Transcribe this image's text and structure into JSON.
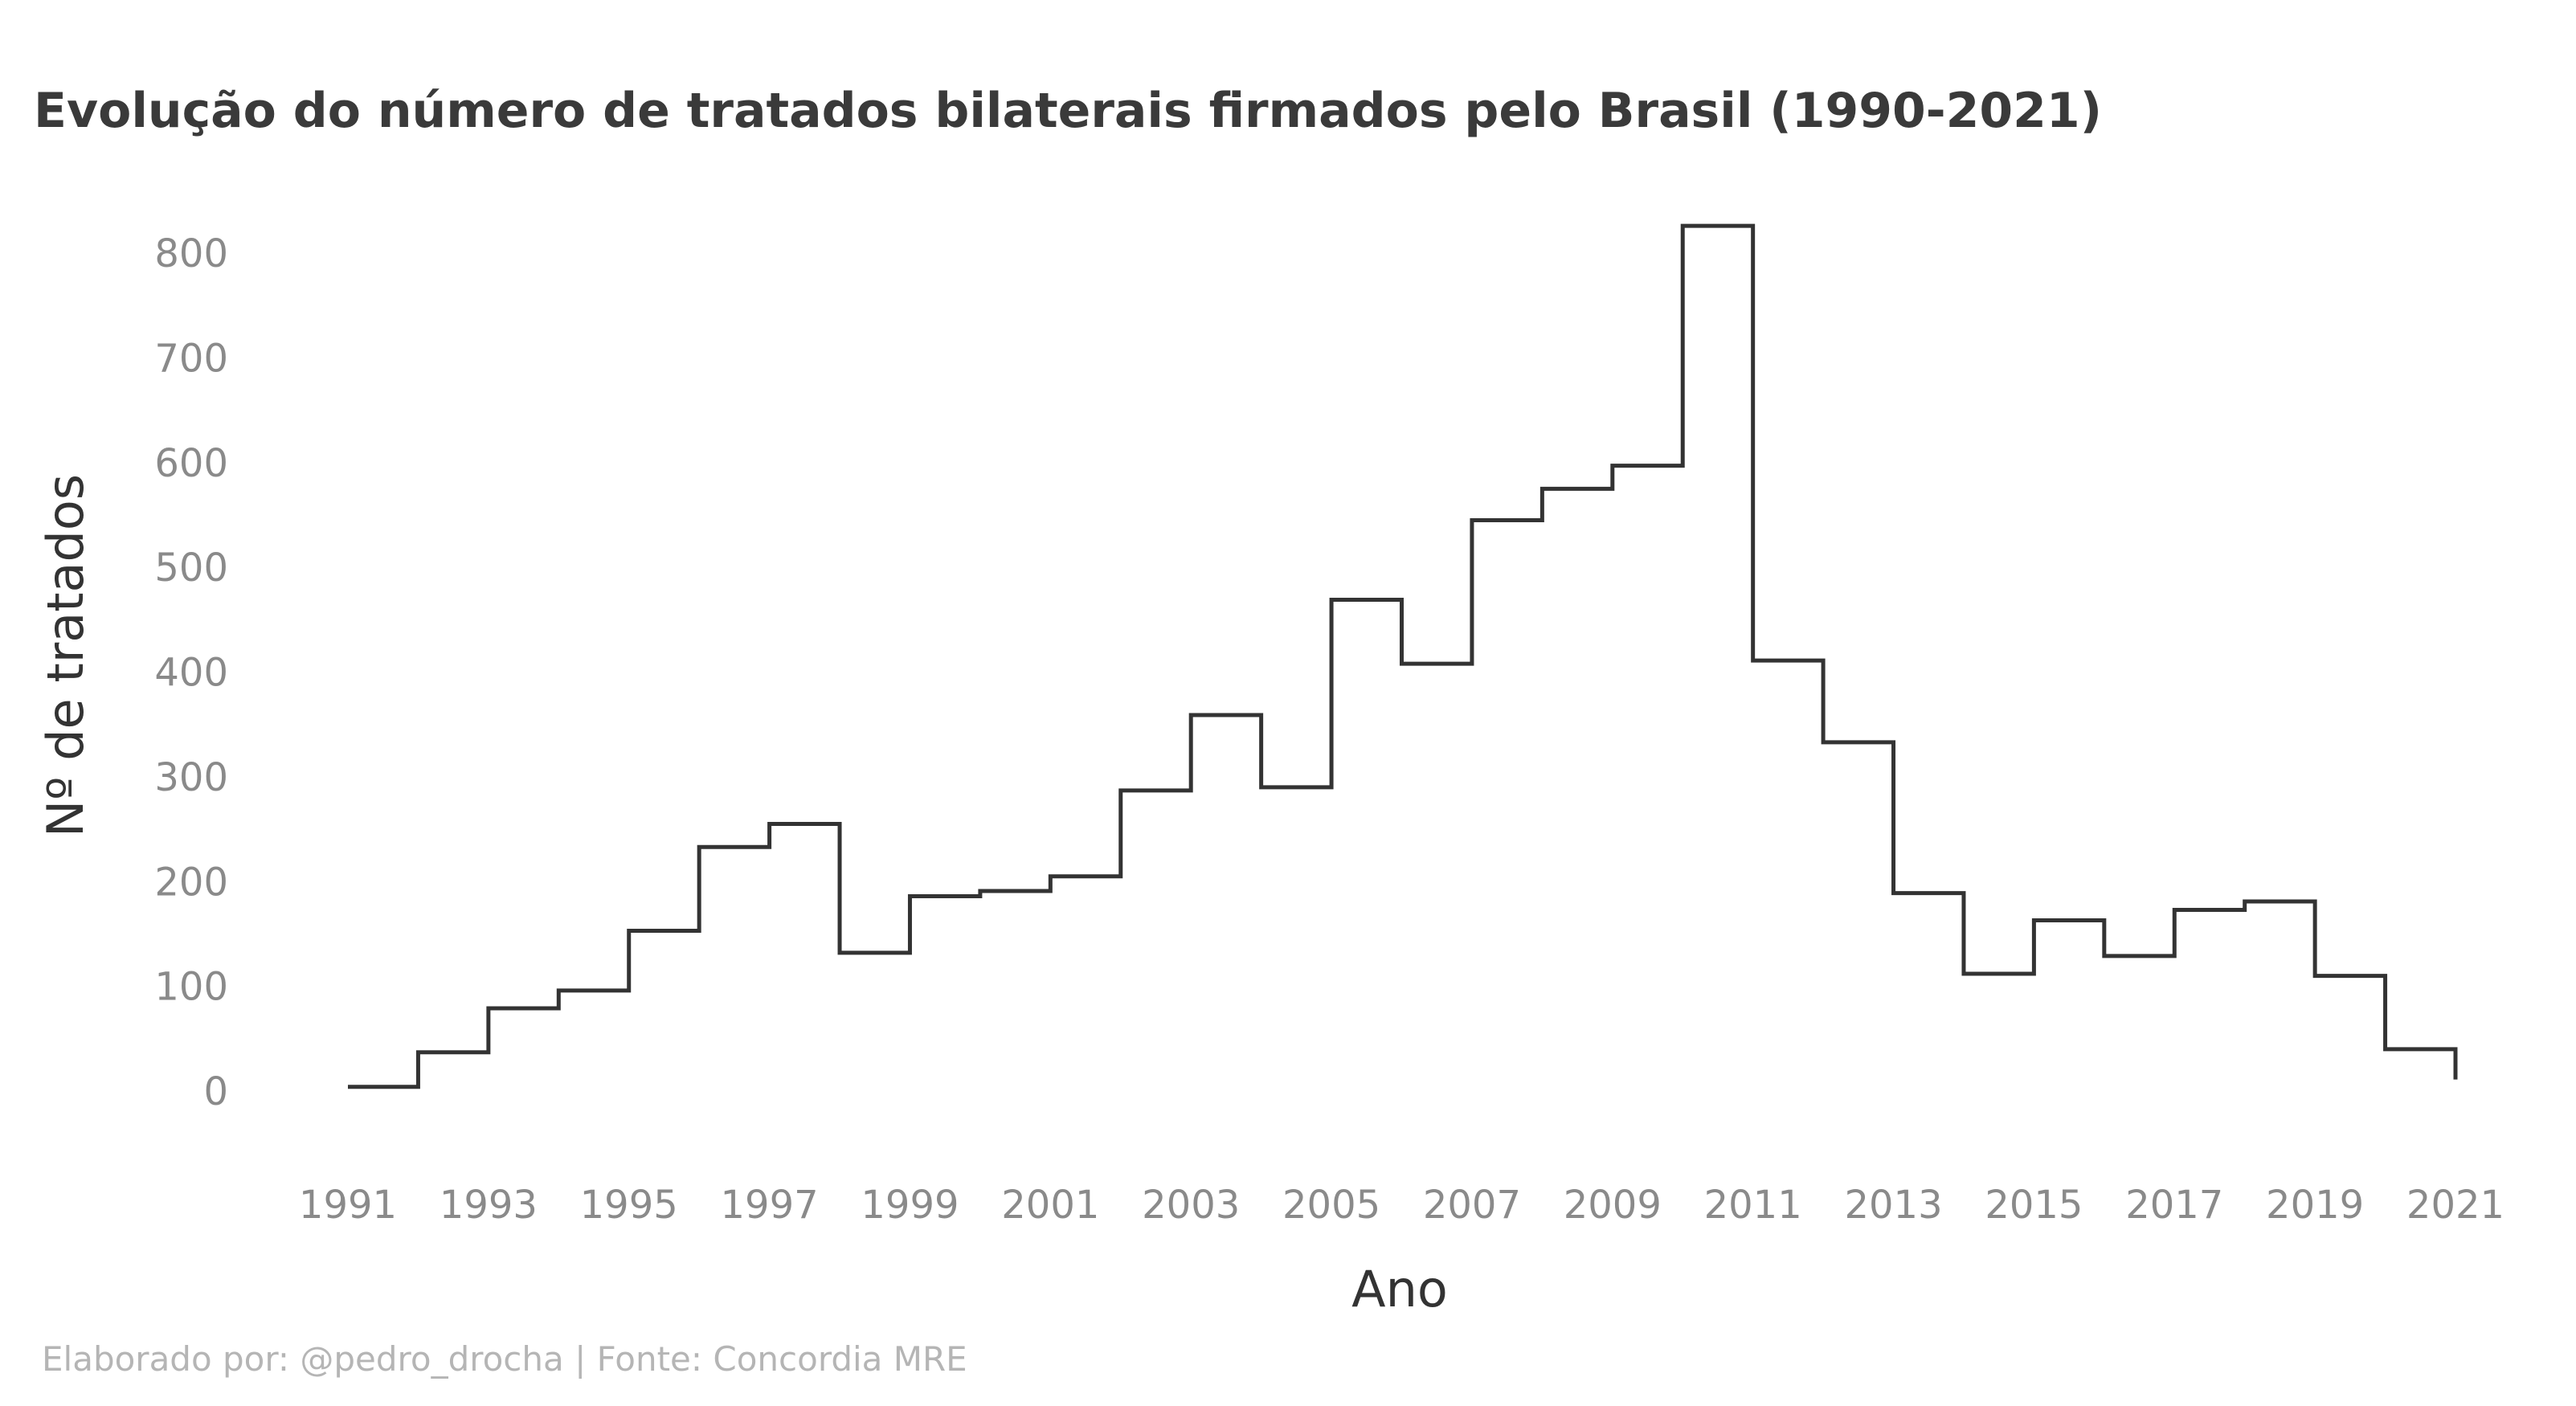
{
  "chart_data": {
    "type": "line",
    "style": "step",
    "title": "Evolução do número de tratados bilaterais firmados pelo Brasil (1990-2021)",
    "xlabel": "Ano",
    "ylabel": "Nº de tratados",
    "caption": "Elaborado por: @pedro_drocha | Fonte: Concordia MRE",
    "line_color": "#333333",
    "grid": false,
    "xlim": [
      1991,
      2021
    ],
    "ylim": [
      0,
      800
    ],
    "x_ticks": [
      1991,
      1993,
      1995,
      1997,
      1999,
      2001,
      2003,
      2005,
      2007,
      2009,
      2011,
      2013,
      2015,
      2017,
      2019,
      2021
    ],
    "y_ticks": [
      0,
      100,
      200,
      300,
      400,
      500,
      600,
      700,
      800
    ],
    "series": [
      {
        "x": [
          1991,
          1992,
          1993,
          1994,
          1995,
          1996,
          1997,
          1998,
          1999,
          2000,
          2001,
          2002,
          2003,
          2004,
          2005,
          2006,
          2007,
          2008,
          2009,
          2010,
          2011,
          2012,
          2013,
          2014,
          2015,
          2016,
          2017,
          2018,
          2019,
          2020,
          2021
        ],
        "values": [
          4,
          37,
          79,
          96,
          153,
          233,
          255,
          132,
          186,
          191,
          205,
          287,
          359,
          290,
          469,
          408,
          545,
          575,
          597,
          826,
          411,
          333,
          189,
          112,
          163,
          129,
          173,
          181,
          110,
          40,
          11
        ]
      }
    ]
  }
}
